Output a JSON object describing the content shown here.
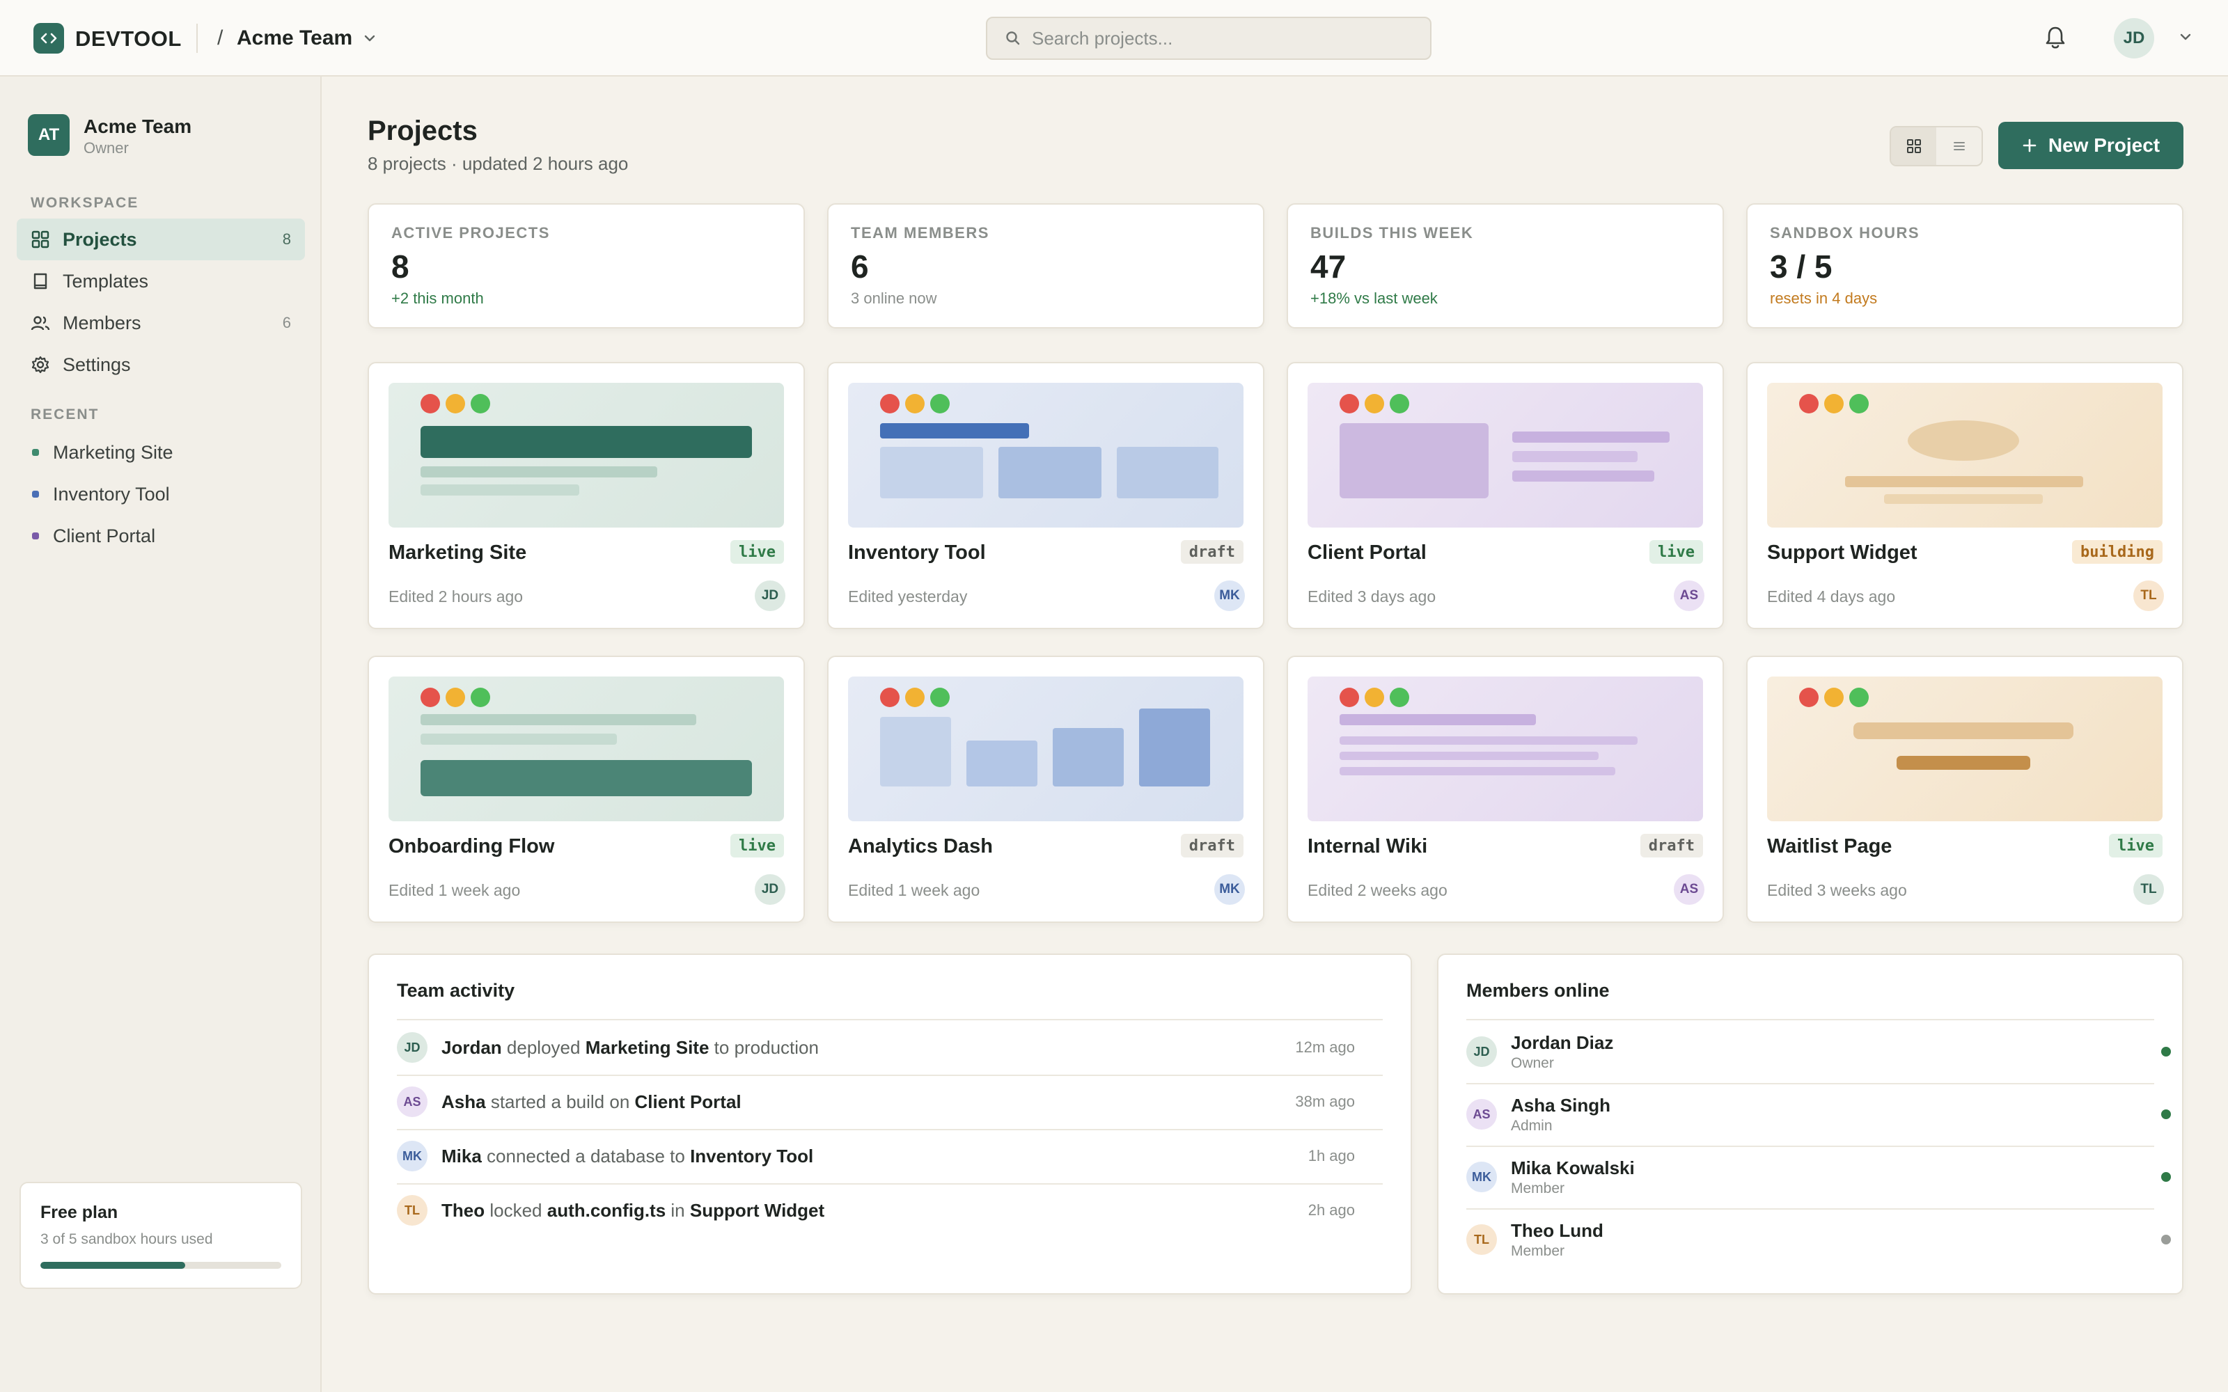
{
  "header": {
    "brand": "DEVTOOL",
    "separator": "/",
    "team": "Acme Team",
    "search_placeholder": "Search projects...",
    "user_initials": "JD"
  },
  "sidebar": {
    "team": {
      "initials": "AT",
      "name": "Acme Team",
      "role": "Owner"
    },
    "workspace_label": "WORKSPACE",
    "nav": [
      {
        "label": "Projects",
        "count": "8",
        "icon": "grid-icon"
      },
      {
        "label": "Templates",
        "count": "",
        "icon": "book-icon"
      },
      {
        "label": "Members",
        "count": "6",
        "icon": "users-icon"
      },
      {
        "label": "Settings",
        "count": "",
        "icon": "gear-icon"
      }
    ],
    "recent_label": "RECENT",
    "recent": [
      {
        "label": "Marketing Site",
        "color": "#3f8a6e"
      },
      {
        "label": "Inventory Tool",
        "color": "#4a6fb5"
      },
      {
        "label": "Client Portal",
        "color": "#7a5aa8"
      }
    ],
    "plan": {
      "title": "Free plan",
      "subtitle": "3 of 5 sandbox hours used",
      "progress": 0.6
    }
  },
  "main": {
    "title": "Projects",
    "subtitle": "8 projects · updated 2 hours ago",
    "new_project_label": "New Project",
    "stats": [
      {
        "label": "ACTIVE PROJECTS",
        "value": "8",
        "note": "+2 this month",
        "note_color": "#2f7a47"
      },
      {
        "label": "TEAM MEMBERS",
        "value": "6",
        "note": "3 online now",
        "note_color": "#8a8e8b"
      },
      {
        "label": "BUILDS THIS WEEK",
        "value": "47",
        "note": "+18% vs last week",
        "note_color": "#2f7a47"
      },
      {
        "label": "SANDBOX HOURS",
        "value": "3 / 5",
        "note": "resets in 4 days",
        "note_color": "#c27a1e"
      }
    ],
    "projects": [
      {
        "name": "Marketing Site",
        "status": "live",
        "edited": "Edited 2 hours ago",
        "owner": "JD"
      },
      {
        "name": "Inventory Tool",
        "status": "draft",
        "edited": "Edited yesterday",
        "owner": "MK"
      },
      {
        "name": "Client Portal",
        "status": "live",
        "edited": "Edited 3 days ago",
        "owner": "AS"
      },
      {
        "name": "Support Widget",
        "status": "building",
        "edited": "Edited 4 days ago",
        "owner": "TL"
      },
      {
        "name": "Onboarding Flow",
        "status": "live",
        "edited": "Edited 1 week ago",
        "owner": "JD"
      },
      {
        "name": "Analytics Dash",
        "status": "draft",
        "edited": "Edited 1 week ago",
        "owner": "MK"
      },
      {
        "name": "Internal Wiki",
        "status": "draft",
        "edited": "Edited 2 weeks ago",
        "owner": "AS"
      },
      {
        "name": "Waitlist Page",
        "status": "live",
        "edited": "Edited 3 weeks ago",
        "owner": "TL"
      }
    ],
    "activity": {
      "title": "Team activity",
      "items": [
        {
          "initials": "JD",
          "actor": "Jordan",
          "verb": "deployed",
          "target": "Marketing Site",
          "tail": "to production",
          "time": "12m ago"
        },
        {
          "initials": "AS",
          "actor": "Asha",
          "verb": "started a build on",
          "target": "Client Portal",
          "tail": "",
          "time": "38m ago"
        },
        {
          "initials": "MK",
          "actor": "Mika",
          "verb": "connected a database to",
          "target": "Inventory Tool",
          "tail": "",
          "time": "1h ago"
        },
        {
          "initials": "TL",
          "actor": "Theo",
          "verb": "locked",
          "target": "auth.config.ts",
          "mid": "in",
          "target2": "Support Widget",
          "time": "2h ago"
        }
      ]
    },
    "members": {
      "title": "Members online",
      "items": [
        {
          "initials": "JD",
          "name": "Jordan Diaz",
          "role": "Owner",
          "status_color": "#2f7a47"
        },
        {
          "initials": "AS",
          "name": "Asha Singh",
          "role": "Admin",
          "status_color": "#2f7a47"
        },
        {
          "initials": "MK",
          "name": "Mika Kowalski",
          "role": "Member",
          "status_color": "#2f7a47"
        },
        {
          "initials": "TL",
          "name": "Theo Lund",
          "role": "Member",
          "status_color": "#9a9d99"
        }
      ]
    }
  }
}
